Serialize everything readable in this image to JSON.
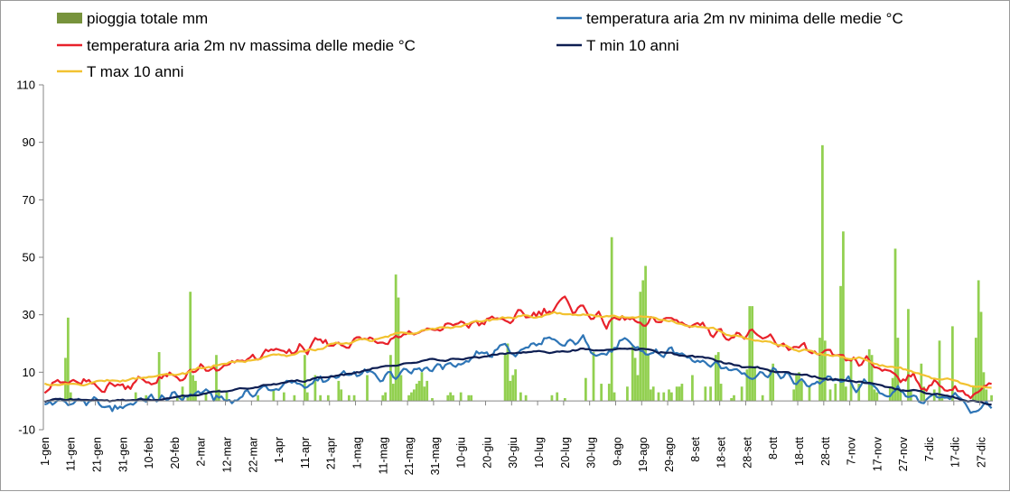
{
  "chart_data": {
    "type": "bar+line",
    "title": "",
    "xlabel": "",
    "ylabel": "",
    "ylim": [
      -10,
      110
    ],
    "yticks": [
      -10,
      10,
      30,
      50,
      70,
      90,
      110
    ],
    "grid": false,
    "legend_position": "top",
    "days": 365,
    "x_tick_labels": [
      "1-gen",
      "11-gen",
      "21-gen",
      "31-gen",
      "10-feb",
      "20-feb",
      "2-mar",
      "12-mar",
      "22-mar",
      "1-apr",
      "11-apr",
      "21-apr",
      "1-mag",
      "11-mag",
      "21-mag",
      "31-mag",
      "10-giu",
      "20-giu",
      "30-giu",
      "10-lug",
      "20-lug",
      "30-lug",
      "9-ago",
      "19-ago",
      "29-ago",
      "8-set",
      "18-set",
      "28-set",
      "8-ott",
      "18-ott",
      "28-ott",
      "7-nov",
      "17-nov",
      "27-nov",
      "7-dic",
      "17-dic",
      "27-dic"
    ],
    "series": [
      {
        "name": "pioggia totale mm",
        "kind": "bar",
        "color": "#92d050",
        "legend_swatch_color": "#77933c",
        "events": [
          [
            8,
            15
          ],
          [
            9,
            29
          ],
          [
            10,
            3
          ],
          [
            35,
            3
          ],
          [
            39,
            2
          ],
          [
            44,
            17
          ],
          [
            51,
            2
          ],
          [
            53,
            5
          ],
          [
            55,
            2
          ],
          [
            56,
            38
          ],
          [
            57,
            9
          ],
          [
            58,
            7
          ],
          [
            62,
            3
          ],
          [
            66,
            16
          ],
          [
            67,
            4
          ],
          [
            70,
            3
          ],
          [
            82,
            2
          ],
          [
            88,
            4
          ],
          [
            92,
            3
          ],
          [
            96,
            2
          ],
          [
            100,
            16
          ],
          [
            101,
            3
          ],
          [
            104,
            9
          ],
          [
            106,
            2
          ],
          [
            109,
            2
          ],
          [
            113,
            7
          ],
          [
            114,
            4
          ],
          [
            117,
            2
          ],
          [
            119,
            2
          ],
          [
            124,
            9
          ],
          [
            130,
            2
          ],
          [
            131,
            3
          ],
          [
            133,
            16
          ],
          [
            134,
            6
          ],
          [
            135,
            44
          ],
          [
            136,
            36
          ],
          [
            137,
            9
          ],
          [
            140,
            2
          ],
          [
            141,
            3
          ],
          [
            142,
            4
          ],
          [
            143,
            6
          ],
          [
            144,
            7
          ],
          [
            145,
            10
          ],
          [
            146,
            5
          ],
          [
            147,
            7
          ],
          [
            149,
            1
          ],
          [
            155,
            2
          ],
          [
            156,
            3
          ],
          [
            157,
            2
          ],
          [
            160,
            3
          ],
          [
            163,
            2
          ],
          [
            164,
            2
          ],
          [
            177,
            16
          ],
          [
            178,
            20
          ],
          [
            179,
            7
          ],
          [
            180,
            9
          ],
          [
            181,
            11
          ],
          [
            183,
            3
          ],
          [
            185,
            2
          ],
          [
            195,
            2
          ],
          [
            197,
            3
          ],
          [
            200,
            1
          ],
          [
            208,
            8
          ],
          [
            211,
            17
          ],
          [
            214,
            6
          ],
          [
            217,
            6
          ],
          [
            218,
            57
          ],
          [
            219,
            3
          ],
          [
            224,
            5
          ],
          [
            226,
            19
          ],
          [
            227,
            15
          ],
          [
            228,
            9
          ],
          [
            229,
            38
          ],
          [
            230,
            42
          ],
          [
            231,
            47
          ],
          [
            232,
            16
          ],
          [
            233,
            4
          ],
          [
            234,
            5
          ],
          [
            236,
            3
          ],
          [
            238,
            3
          ],
          [
            240,
            4
          ],
          [
            241,
            3
          ],
          [
            243,
            5
          ],
          [
            244,
            5
          ],
          [
            245,
            6
          ],
          [
            249,
            9
          ],
          [
            254,
            5
          ],
          [
            256,
            5
          ],
          [
            258,
            16
          ],
          [
            259,
            17
          ],
          [
            260,
            6
          ],
          [
            264,
            1
          ],
          [
            265,
            2
          ],
          [
            268,
            5
          ],
          [
            270,
            11
          ],
          [
            271,
            33
          ],
          [
            272,
            33
          ],
          [
            273,
            12
          ],
          [
            276,
            2
          ],
          [
            279,
            11
          ],
          [
            280,
            13
          ],
          [
            288,
            4
          ],
          [
            289,
            9
          ],
          [
            290,
            10
          ],
          [
            291,
            7
          ],
          [
            294,
            5
          ],
          [
            298,
            22
          ],
          [
            299,
            89
          ],
          [
            300,
            21
          ],
          [
            302,
            4
          ],
          [
            304,
            6
          ],
          [
            306,
            40
          ],
          [
            307,
            59
          ],
          [
            308,
            5
          ],
          [
            310,
            14
          ],
          [
            313,
            6
          ],
          [
            317,
            18
          ],
          [
            318,
            16
          ],
          [
            319,
            4
          ],
          [
            320,
            3
          ],
          [
            325,
            5
          ],
          [
            326,
            8
          ],
          [
            327,
            53
          ],
          [
            328,
            22
          ],
          [
            329,
            4
          ],
          [
            332,
            32
          ],
          [
            333,
            4
          ],
          [
            337,
            13
          ],
          [
            338,
            5
          ],
          [
            342,
            4
          ],
          [
            344,
            21
          ],
          [
            345,
            2
          ],
          [
            349,
            26
          ],
          [
            357,
            5
          ],
          [
            358,
            22
          ],
          [
            359,
            42
          ],
          [
            360,
            31
          ],
          [
            361,
            10
          ],
          [
            362,
            4
          ],
          [
            364,
            2
          ]
        ]
      },
      {
        "name": "temperatura aria 2m nv minima delle medie °C",
        "kind": "line",
        "color": "#2e75b6",
        "keypoints": [
          [
            0,
            -1
          ],
          [
            15,
            0
          ],
          [
            25,
            -3
          ],
          [
            35,
            0
          ],
          [
            50,
            1
          ],
          [
            60,
            3
          ],
          [
            70,
            0
          ],
          [
            80,
            3
          ],
          [
            90,
            5
          ],
          [
            100,
            6
          ],
          [
            110,
            7
          ],
          [
            120,
            9
          ],
          [
            130,
            9
          ],
          [
            140,
            12
          ],
          [
            150,
            12
          ],
          [
            160,
            14
          ],
          [
            170,
            16
          ],
          [
            175,
            19
          ],
          [
            182,
            17
          ],
          [
            190,
            20
          ],
          [
            200,
            19
          ],
          [
            205,
            21
          ],
          [
            210,
            20
          ],
          [
            215,
            16
          ],
          [
            220,
            18
          ],
          [
            225,
            20
          ],
          [
            230,
            17
          ],
          [
            240,
            16
          ],
          [
            250,
            16
          ],
          [
            260,
            12
          ],
          [
            270,
            10
          ],
          [
            280,
            10
          ],
          [
            290,
            6
          ],
          [
            300,
            7
          ],
          [
            310,
            6
          ],
          [
            320,
            4
          ],
          [
            330,
            2
          ],
          [
            340,
            1
          ],
          [
            350,
            2
          ],
          [
            355,
            -3
          ],
          [
            360,
            -2
          ],
          [
            364,
            -1
          ]
        ]
      },
      {
        "name": "temperatura aria 2m nv massima delle medie °C",
        "kind": "line",
        "color": "#e8222b",
        "keypoints": [
          [
            0,
            6
          ],
          [
            10,
            6
          ],
          [
            20,
            5
          ],
          [
            30,
            6
          ],
          [
            40,
            7
          ],
          [
            50,
            8
          ],
          [
            60,
            10
          ],
          [
            70,
            11
          ],
          [
            80,
            15
          ],
          [
            90,
            17
          ],
          [
            100,
            18
          ],
          [
            110,
            20
          ],
          [
            120,
            21
          ],
          [
            130,
            22
          ],
          [
            140,
            24
          ],
          [
            150,
            25
          ],
          [
            160,
            26
          ],
          [
            170,
            28
          ],
          [
            180,
            28
          ],
          [
            190,
            31
          ],
          [
            197,
            33
          ],
          [
            200,
            34
          ],
          [
            210,
            31
          ],
          [
            215,
            27
          ],
          [
            220,
            28
          ],
          [
            225,
            29
          ],
          [
            230,
            24
          ],
          [
            235,
            29
          ],
          [
            240,
            28
          ],
          [
            250,
            27
          ],
          [
            260,
            24
          ],
          [
            270,
            22
          ],
          [
            280,
            21
          ],
          [
            290,
            18
          ],
          [
            300,
            15
          ],
          [
            310,
            14
          ],
          [
            320,
            12
          ],
          [
            330,
            9
          ],
          [
            340,
            5
          ],
          [
            350,
            5
          ],
          [
            355,
            2
          ],
          [
            360,
            3
          ],
          [
            364,
            5
          ]
        ]
      },
      {
        "name": "T min 10 anni",
        "kind": "line",
        "color": "#0d1e52",
        "keypoints": [
          [
            0,
            0
          ],
          [
            15,
            1
          ],
          [
            30,
            0
          ],
          [
            45,
            1
          ],
          [
            60,
            2
          ],
          [
            75,
            4
          ],
          [
            90,
            6
          ],
          [
            105,
            8
          ],
          [
            120,
            10
          ],
          [
            135,
            12
          ],
          [
            150,
            14
          ],
          [
            165,
            15
          ],
          [
            180,
            17
          ],
          [
            195,
            17
          ],
          [
            210,
            18
          ],
          [
            225,
            18
          ],
          [
            240,
            17
          ],
          [
            255,
            15
          ],
          [
            270,
            12
          ],
          [
            285,
            10
          ],
          [
            300,
            8
          ],
          [
            315,
            6
          ],
          [
            330,
            4
          ],
          [
            345,
            2
          ],
          [
            355,
            0
          ],
          [
            364,
            -1
          ]
        ]
      },
      {
        "name": "T max 10 anni",
        "kind": "line",
        "color": "#f2c230",
        "keypoints": [
          [
            0,
            6
          ],
          [
            15,
            6
          ],
          [
            30,
            7
          ],
          [
            45,
            9
          ],
          [
            60,
            11
          ],
          [
            75,
            14
          ],
          [
            90,
            16
          ],
          [
            105,
            18
          ],
          [
            120,
            21
          ],
          [
            135,
            23
          ],
          [
            150,
            25
          ],
          [
            165,
            27
          ],
          [
            180,
            29
          ],
          [
            195,
            30
          ],
          [
            210,
            30
          ],
          [
            225,
            29
          ],
          [
            240,
            28
          ],
          [
            255,
            25
          ],
          [
            270,
            22
          ],
          [
            285,
            19
          ],
          [
            300,
            16
          ],
          [
            315,
            14
          ],
          [
            330,
            11
          ],
          [
            345,
            8
          ],
          [
            355,
            6
          ],
          [
            364,
            5
          ]
        ]
      }
    ]
  }
}
